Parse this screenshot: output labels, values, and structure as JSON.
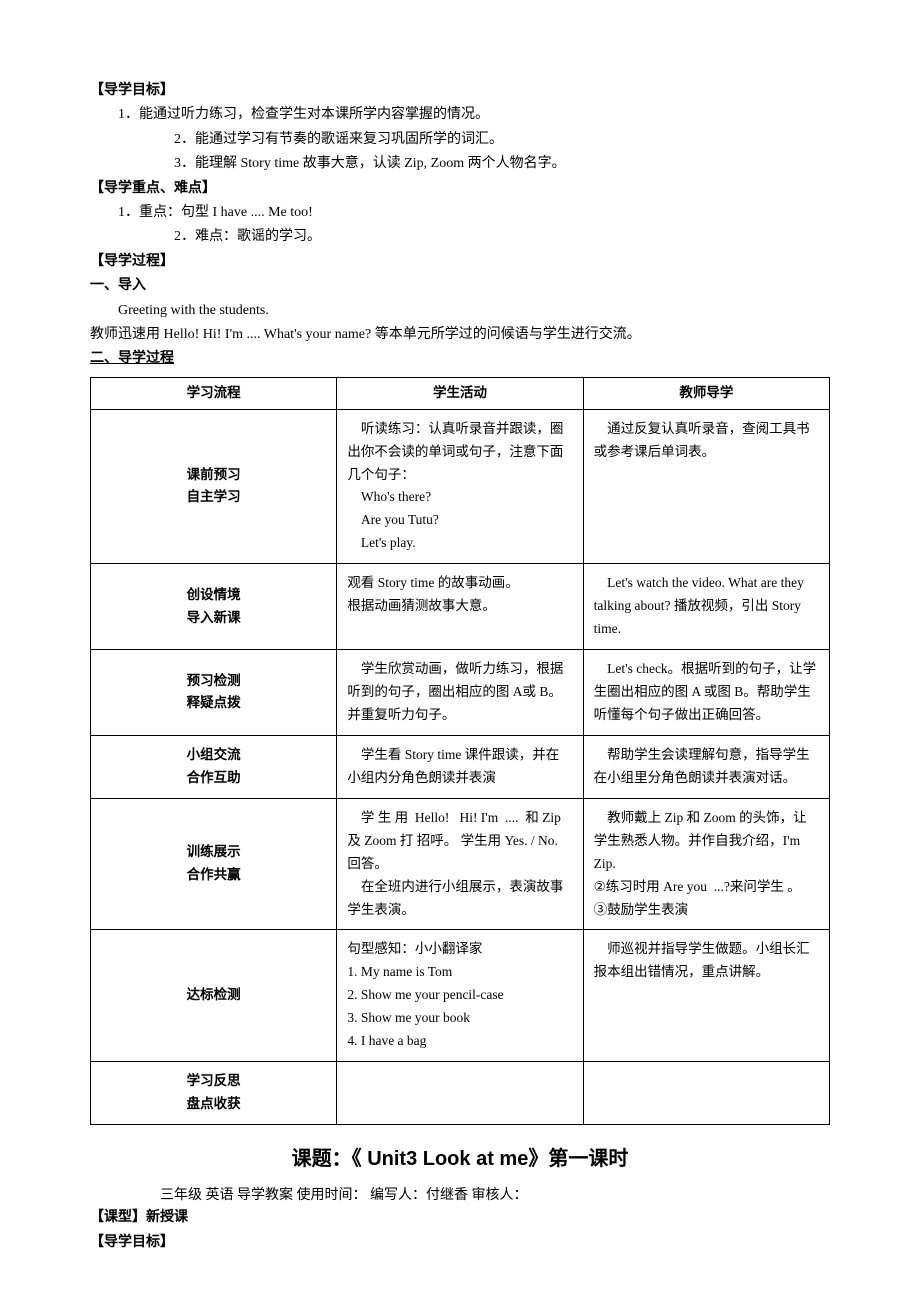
{
  "header": {
    "goals_label": "【导学目标】",
    "goal1": "1．能通过听力练习，检查学生对本课所学内容掌握的情况。",
    "goal2": "2．能通过学习有节奏的歌谣来复习巩固所学的词汇。",
    "goal3": "3．能理解 Story time 故事大意，认读 Zip,  Zoom 两个人物名字。",
    "key_label": "【导学重点、难点】",
    "key1": "1．重点：句型 I have .... Me too!",
    "key2": "2．难点：歌谣的学习。",
    "process_label": "【导学过程】",
    "intro_label": "一、导入",
    "intro_line1": "Greeting with the students.",
    "intro_line2": "教师迅速用 Hello! Hi! I'm .... What's your name? 等本单元所学过的问候语与学生进行交流。",
    "process2_label": "二、导学过程"
  },
  "table": {
    "col1": "学习流程",
    "col2": "学生活动",
    "col3": "教师导学",
    "rows": [
      {
        "stage": "课前预习\n自主学习",
        "student": "    听读练习：认真听录音并跟读，圈出你不会读的单词或句子，注意下面几个句子：\n    Who's there?\n    Are you Tutu?\n    Let's play.",
        "teacher": "    通过反复认真听录音，查阅工具书或参考课后单词表。"
      },
      {
        "stage": "创设情境\n导入新课",
        "student": "观看 Story time 的故事动画。\n根据动画猜测故事大意。",
        "teacher": "    Let's watch the video. What are they talking about? 播放视频，引出 Story time."
      },
      {
        "stage": "预习检测\n释疑点拨",
        "student": "    学生欣赏动画，做听力练习，根据听到的句子，圈出相应的图 A或 B。\n并重复听力句子。",
        "teacher": "    Let's check。根据听到的句子，让学生圈出相应的图 A 或图 B。帮助学生听懂每个句子做出正确回答。"
      },
      {
        "stage": "小组交流\n合作互助",
        "student": "    学生看 Story time 课件跟读，并在小组内分角色朗读并表演",
        "teacher": "    帮助学生会读理解句意，指导学生在小组里分角色朗读并表演对话。"
      },
      {
        "stage": "训练展示\n合作共赢",
        "student": "    学 生 用  Hello!   Hi! I'm  ....  和 Zip 及 Zoom 打 招呼。 学生用 Yes. / No. 回答。\n    在全班内进行小组展示，表演故事学生表演。",
        "teacher": "    教师戴上 Zip 和 Zoom 的头饰，让学生熟悉人物。并作自我介绍，I'm Zip.\n②练习时用 Are you  ...?来问学生 。\n③鼓励学生表演"
      },
      {
        "stage": "达标检测",
        "student": "句型感知：小小翻译家\n1. My name is Tom\n2. Show me your pencil-case\n3. Show me your book\n4. I have a bag",
        "teacher": "    师巡视并指导学生做题。小组长汇报本组出错情况，重点讲解。"
      },
      {
        "stage": "学习反思\n盘点收获",
        "student": "",
        "teacher": ""
      }
    ]
  },
  "footer": {
    "title": "课题：《 Unit3 Look at me》第一课时",
    "meta": "三年级  英语 导学教案   使用时间：  编写人：付继香     审核人：",
    "type_label": "【课型】新授课",
    "goal_label": "【导学目标】"
  }
}
